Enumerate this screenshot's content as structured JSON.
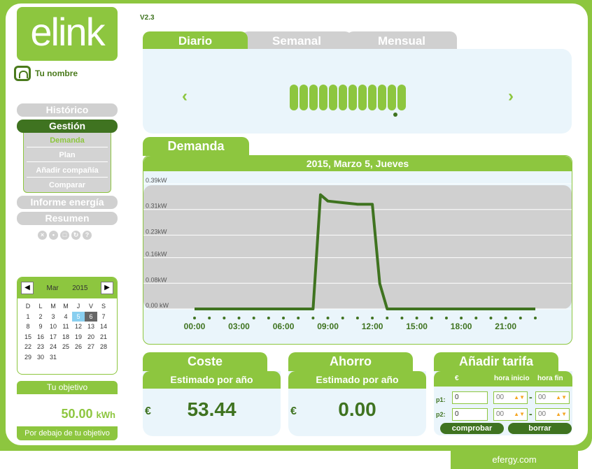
{
  "brand": {
    "logo_text": "elink",
    "footer": "efergy.com",
    "accent": "#8dc63f",
    "dark": "#3f7320"
  },
  "version": "V2.3",
  "user": {
    "name": "Tu nombre",
    "icon": "user-icon"
  },
  "nav": {
    "historico": "Histórico",
    "gestion": "Gestión",
    "sub": [
      "Demanda",
      "Plan",
      "Añadir compañía",
      "Comparar"
    ],
    "informe": "Informe energía",
    "resumen": "Resumen"
  },
  "calendar": {
    "month": "Mar",
    "year": "2015",
    "weekdays": [
      "D",
      "L",
      "M",
      "M",
      "J",
      "V",
      "S"
    ],
    "selected_day": "5",
    "today_day": "6",
    "weeks": [
      [
        "1",
        "2",
        "3",
        "4",
        "5",
        "6",
        "7"
      ],
      [
        "8",
        "9",
        "10",
        "11",
        "12",
        "13",
        "14"
      ],
      [
        "15",
        "16",
        "17",
        "18",
        "19",
        "20",
        "21"
      ],
      [
        "22",
        "23",
        "24",
        "25",
        "26",
        "27",
        "28"
      ],
      [
        "29",
        "30",
        "31",
        "",
        "",
        "",
        ""
      ]
    ]
  },
  "objective": {
    "title": "Tu objetivo",
    "value": "50.00",
    "unit": "kWh",
    "status": "Por debajo de tu objetivo"
  },
  "tabs": {
    "diario": "Diario",
    "semanal": "Semanal",
    "mensual": "Mensual"
  },
  "demanda": {
    "title": "Demanda",
    "date": "2015, Marzo 5, Jueves"
  },
  "chart_data": {
    "type": "line",
    "title": "2015, Marzo 5, Jueves",
    "y_ticks": [
      "0.00 kW",
      "0.08kW",
      "0.16kW",
      "0.23kW",
      "0.31kW",
      "0.39kW"
    ],
    "x_ticks": [
      "00:00",
      "03:00",
      "06:00",
      "09:00",
      "12:00",
      "15:00",
      "18:00",
      "21:00"
    ],
    "ylim": [
      0,
      0.39
    ],
    "series": [
      {
        "x": [
          "00:00",
          "01:00",
          "02:00",
          "03:00",
          "04:00",
          "05:00",
          "06:00",
          "07:00",
          "07:30",
          "08:00",
          "08:30",
          "09:00",
          "10:00",
          "11:00",
          "12:00",
          "12:30",
          "13:00",
          "14:00",
          "15:00",
          "16:00",
          "17:00",
          "18:00",
          "19:00",
          "20:00",
          "21:00",
          "22:00",
          "23:00"
        ],
        "x_hours": [
          0,
          1,
          2,
          3,
          4,
          5,
          6,
          7,
          7.5,
          8,
          8.5,
          9,
          10,
          11,
          12,
          12.5,
          13,
          14,
          15,
          16,
          17,
          18,
          19,
          20,
          21,
          22,
          23
        ],
        "values": [
          0,
          0,
          0,
          0,
          0,
          0,
          0,
          0,
          0,
          0,
          0.36,
          0.34,
          0.335,
          0.33,
          0.33,
          0.08,
          0,
          0,
          0,
          0,
          0,
          0,
          0,
          0,
          0,
          0,
          0
        ]
      }
    ],
    "grid": true
  },
  "coste": {
    "title": "Coste",
    "subtitle": "Estimado por año",
    "currency": "€",
    "value": "53.44"
  },
  "ahorro": {
    "title": "Ahorro",
    "subtitle": "Estimado por año",
    "currency": "€",
    "value": "0.00"
  },
  "tarifa": {
    "title": "Añadir tarifa",
    "col_euro": "€",
    "col_inicio": "hora inicio",
    "col_fin": "hora fin",
    "p1_label": "p1:",
    "p2_label": "p2:",
    "p1_value": "0",
    "p2_value": "0",
    "p1_inicio": "00",
    "p1_fin": "00",
    "p2_inicio": "00",
    "p2_fin": "00",
    "dash": "-",
    "comprobar": "comprobar",
    "borrar": "borrar"
  }
}
